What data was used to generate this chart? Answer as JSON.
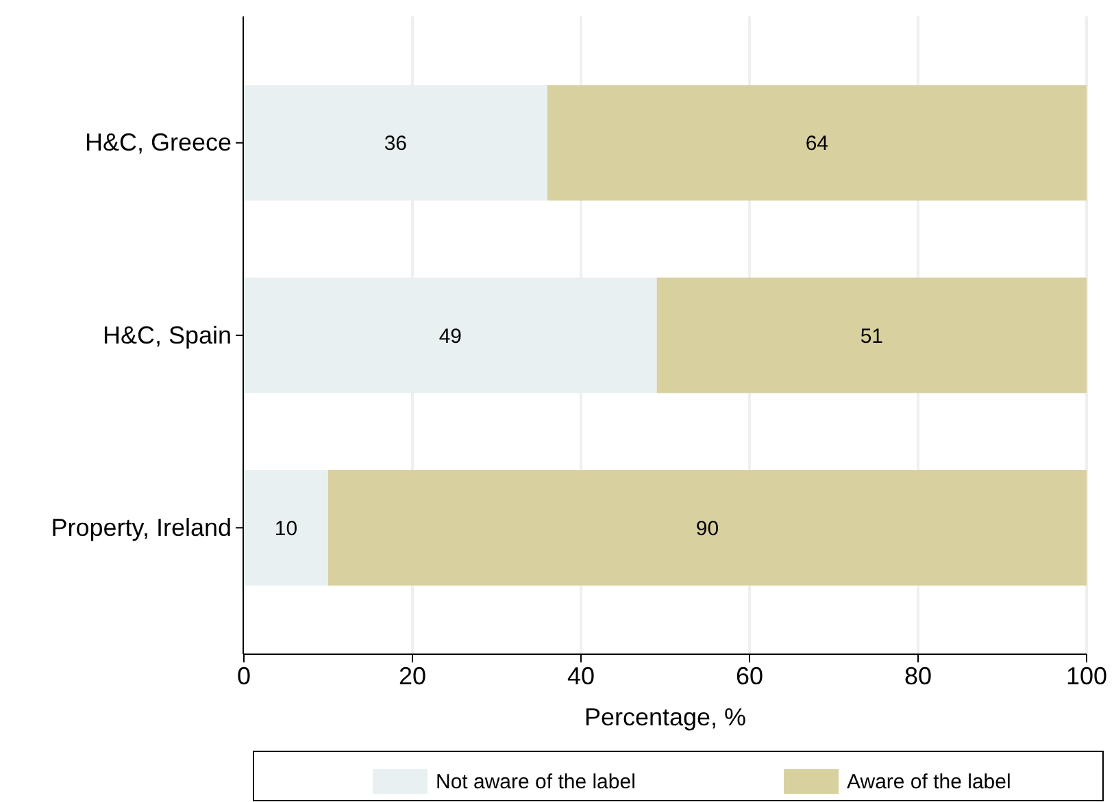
{
  "chart_data": {
    "type": "bar",
    "orientation": "horizontal",
    "stacked": true,
    "xlabel": "Percentage, %",
    "categories": [
      "H&C, Greece",
      "H&C, Spain",
      "Property, Ireland"
    ],
    "series": [
      {
        "name": "Not aware of the label",
        "color": "#e8f0f2",
        "values": [
          36,
          49,
          10
        ]
      },
      {
        "name": "Aware of the label",
        "color": "#d8d19f",
        "values": [
          64,
          51,
          90
        ]
      }
    ],
    "xlim": [
      0,
      100
    ],
    "xticks": [
      0,
      20,
      40,
      60,
      80,
      100
    ],
    "grid": "x",
    "data_labels": true,
    "legend": "bottom"
  }
}
